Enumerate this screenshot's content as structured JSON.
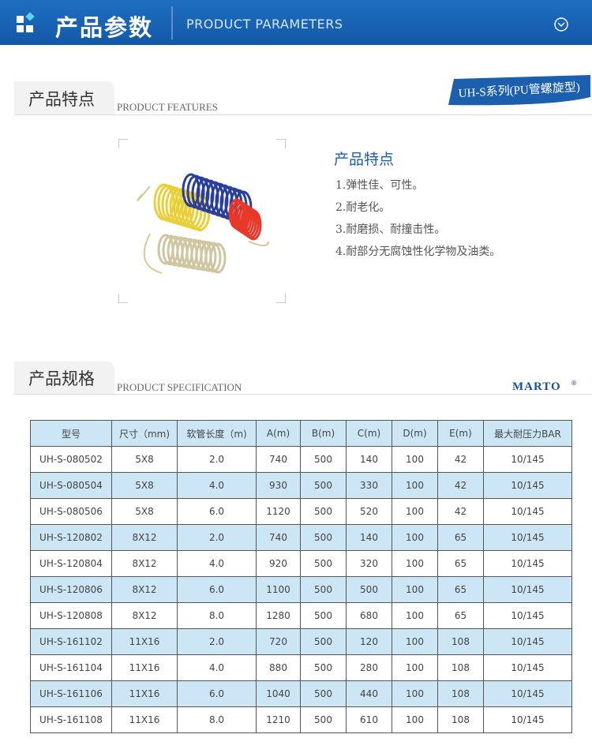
{
  "header": {
    "title": "产品参数",
    "subtitle": "PRODUCT PARAMETERS"
  },
  "features": {
    "title": "产品特点",
    "subtitle": "PRODUCT FEATURES",
    "badge": "UH-S系列(PU管螺旋型)",
    "heading": "产品特点",
    "items": [
      "1.弹性佳、可性。",
      "2.耐老化。",
      "3.耐磨损、耐撞击性。",
      "4.耐部分无腐蚀性化学物及油类。"
    ]
  },
  "specification": {
    "title": "产品规格",
    "subtitle": "PRODUCT SPECIFICATION",
    "brand": "MARTO",
    "brand_mark": "®"
  },
  "table": {
    "header": [
      "型号",
      "尺寸（mm)",
      "软管长度（m)",
      "A(m)",
      "B(m)",
      "C(m)",
      "D(m)",
      "E(m)",
      "最大耐压力BAR"
    ],
    "rows": [
      [
        "UH-S-080502",
        "5X8",
        "2.0",
        "740",
        "500",
        "140",
        "100",
        "42",
        "10/145"
      ],
      [
        "UH-S-080504",
        "5X8",
        "4.0",
        "930",
        "500",
        "330",
        "100",
        "42",
        "10/145"
      ],
      [
        "UH-S-080506",
        "5X8",
        "6.0",
        "1120",
        "500",
        "520",
        "100",
        "42",
        "10/145"
      ],
      [
        "UH-S-120802",
        "8X12",
        "2.0",
        "740",
        "500",
        "140",
        "100",
        "65",
        "10/145"
      ],
      [
        "UH-S-120804",
        "8X12",
        "4.0",
        "920",
        "500",
        "320",
        "100",
        "65",
        "10/145"
      ],
      [
        "UH-S-120806",
        "8X12",
        "6.0",
        "1100",
        "500",
        "500",
        "100",
        "65",
        "10/145"
      ],
      [
        "UH-S-120808",
        "8X12",
        "8.0",
        "1280",
        "500",
        "680",
        "100",
        "65",
        "10/145"
      ],
      [
        "UH-S-161102",
        "11X16",
        "2.0",
        "720",
        "500",
        "120",
        "100",
        "108",
        "10/145"
      ],
      [
        "UH-S-161104",
        "11X16",
        "4.0",
        "880",
        "500",
        "280",
        "100",
        "108",
        "10/145"
      ],
      [
        "UH-S-161106",
        "11X16",
        "6.0",
        "1040",
        "500",
        "440",
        "100",
        "108",
        "10/145"
      ],
      [
        "UH-S-161108",
        "11X16",
        "8.0",
        "1210",
        "500",
        "610",
        "100",
        "108",
        "10/145"
      ]
    ]
  }
}
